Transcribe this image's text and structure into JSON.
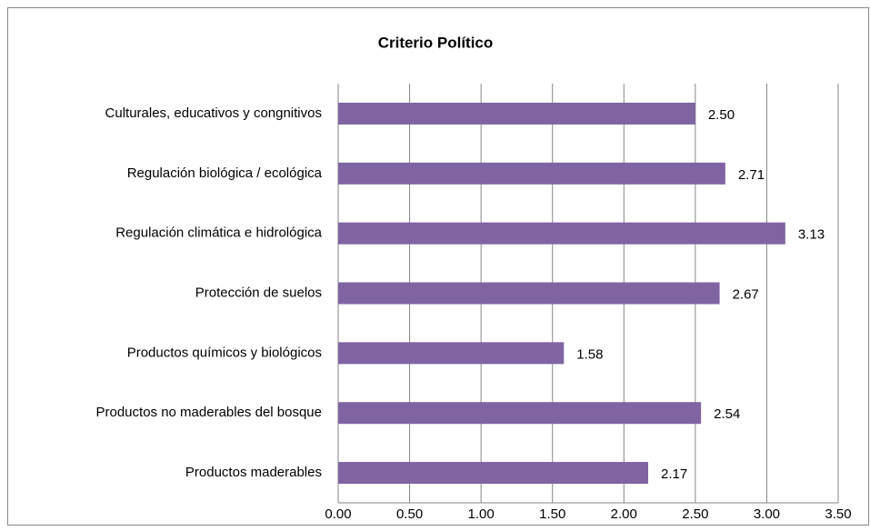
{
  "chart_data": {
    "type": "bar",
    "orientation": "horizontal",
    "title": "Criterio Político",
    "categories": [
      "Culturales, educativos y congnitivos",
      "Regulación biológica / ecológica",
      "Regulación climática e hidrológica",
      "Protección de suelos",
      "Productos químicos y biológicos",
      "Productos no maderables del bosque",
      "Productos maderables"
    ],
    "values": [
      2.5,
      2.71,
      3.13,
      2.67,
      1.58,
      2.54,
      2.17
    ],
    "value_labels": [
      "2.50",
      "2.71",
      "3.13",
      "2.67",
      "1.58",
      "2.54",
      "2.17"
    ],
    "color": "#8064a2",
    "xlim": [
      0,
      3.5
    ],
    "xticks": [
      {
        "value": 0,
        "label": "0.00"
      },
      {
        "value": 0.5,
        "label": "0.50"
      },
      {
        "value": 1,
        "label": "1.00"
      },
      {
        "value": 1.5,
        "label": "1.50"
      },
      {
        "value": 2,
        "label": "2.00"
      },
      {
        "value": 2.5,
        "label": "2.50"
      },
      {
        "value": 3,
        "label": "3.00"
      },
      {
        "value": 3.5,
        "label": "3.50"
      }
    ],
    "grid": true
  }
}
